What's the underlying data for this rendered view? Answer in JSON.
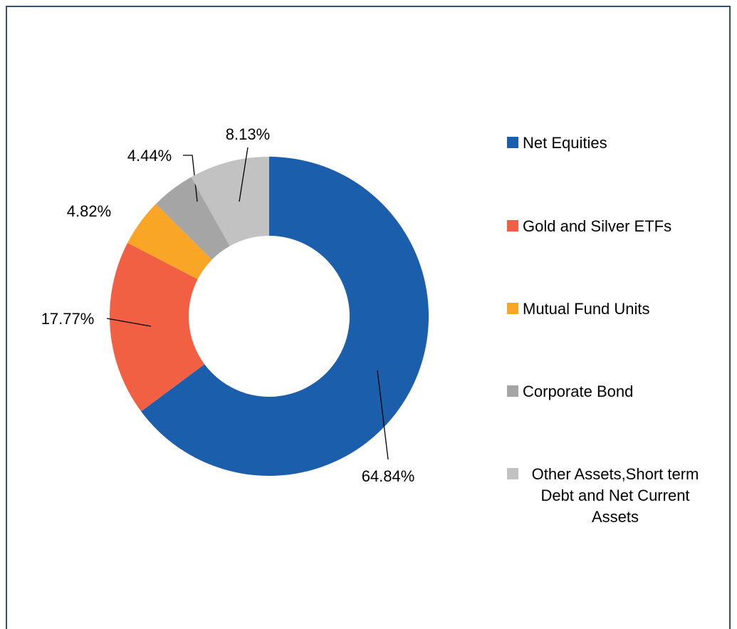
{
  "chart_data": {
    "type": "donut",
    "categories": [
      "Net Equities",
      "Gold and Silver ETFs",
      "Mutual Fund Units",
      "Corporate Bond",
      "Other Assets,Short term Debt and Net Current Assets"
    ],
    "values": [
      64.84,
      17.77,
      4.82,
      4.44,
      8.13
    ],
    "value_labels": [
      "64.84%",
      "17.77%",
      "4.82%",
      "4.44%",
      "8.13%"
    ],
    "colors": [
      "#1b5eab",
      "#f26044",
      "#f9a526",
      "#a5a5a5",
      "#c2c2c2"
    ],
    "legend": "right"
  }
}
